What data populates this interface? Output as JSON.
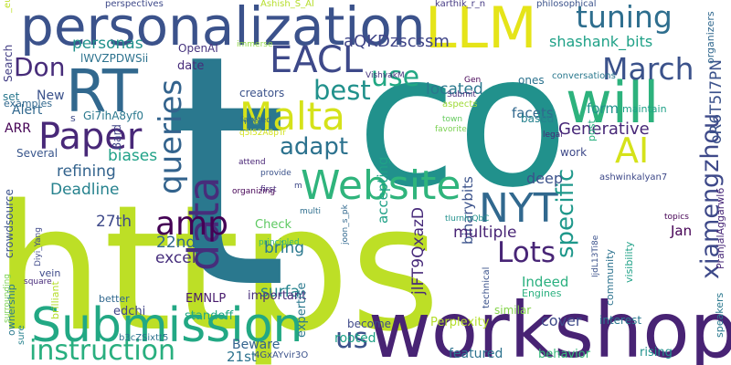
{
  "words": [
    {
      "text": "https",
      "color": "#bddf26"
    },
    {
      "text": "co",
      "color": "#21918c"
    },
    {
      "text": "t",
      "color": "#2a788e"
    },
    {
      "text": "workshop",
      "color": "#482374"
    },
    {
      "text": "personalization",
      "color": "#3b528b"
    },
    {
      "text": "Submission",
      "color": "#22a884"
    },
    {
      "text": "LLM",
      "color": "#e5e419"
    },
    {
      "text": "RT",
      "color": "#31688e"
    },
    {
      "text": "will",
      "color": "#2db27d"
    },
    {
      "text": "Website",
      "color": "#2fb47c"
    },
    {
      "text": "Malta",
      "color": "#d5e21a"
    },
    {
      "text": "EACL",
      "color": "#3e4989"
    },
    {
      "text": "data",
      "color": "#472d7b"
    },
    {
      "text": "Paper",
      "color": "#482878"
    },
    {
      "text": "queries",
      "color": "#33638d"
    },
    {
      "text": "instruction",
      "color": "#29af7f"
    },
    {
      "text": "NYT",
      "color": "#31688e"
    },
    {
      "text": "March",
      "color": "#3b528b"
    },
    {
      "text": "xiamengzhou",
      "color": "#3e4989"
    },
    {
      "text": "amp",
      "color": "#440154"
    },
    {
      "text": "Lots",
      "color": "#482576"
    },
    {
      "text": "us",
      "color": "#3b528b"
    },
    {
      "text": "specific",
      "color": "#1f988b"
    },
    {
      "text": "tuning",
      "color": "#2e6e8e"
    },
    {
      "text": "best",
      "color": "#21918c"
    },
    {
      "text": "AI",
      "color": "#d5e21a"
    },
    {
      "text": "use",
      "color": "#22a884"
    },
    {
      "text": "adapt",
      "color": "#2c728e"
    },
    {
      "text": "Don",
      "color": "#472c7a"
    },
    {
      "text": "aQKDzscssm",
      "color": "#404688"
    },
    {
      "text": "oR6T5I7PN",
      "color": "#3b528b"
    },
    {
      "text": "Generative",
      "color": "#482878"
    },
    {
      "text": "shashank_bits",
      "color": "#1fa187"
    },
    {
      "text": "personas",
      "color": "#21918c"
    },
    {
      "text": "located",
      "color": "#2a788e"
    },
    {
      "text": "refining",
      "color": "#33638d"
    },
    {
      "text": "biases",
      "color": "#1fa187"
    },
    {
      "text": "Deadline",
      "color": "#26828e"
    },
    {
      "text": "27th",
      "color": "#3e4989"
    },
    {
      "text": "22nd",
      "color": "#31688e"
    },
    {
      "text": "excel",
      "color": "#472f7d"
    },
    {
      "text": "bring",
      "color": "#2a788e"
    },
    {
      "text": "surfa",
      "color": "#25848e"
    },
    {
      "text": "jlFT9QxazD",
      "color": "#472a7a"
    },
    {
      "text": "binarybits",
      "color": "#3b528b"
    },
    {
      "text": "multiple",
      "color": "#482475"
    },
    {
      "text": "accepting",
      "color": "#1fa187"
    },
    {
      "text": "facets",
      "color": "#31688e"
    },
    {
      "text": "deep",
      "color": "#3b528b"
    },
    {
      "text": "form",
      "color": "#21918c"
    },
    {
      "text": "maintain",
      "color": "#1fa187"
    },
    {
      "text": "Indeed",
      "color": "#2ab07f"
    },
    {
      "text": "cover",
      "color": "#3e4989"
    },
    {
      "text": "featured",
      "color": "#2c728e"
    },
    {
      "text": "rooted",
      "color": "#1fa187"
    },
    {
      "text": "21st",
      "color": "#2c728e"
    },
    {
      "text": "Beware",
      "color": "#33638d"
    },
    {
      "text": "behavior",
      "color": "#35b779"
    },
    {
      "text": "rising",
      "color": "#21918c"
    },
    {
      "text": "Jan",
      "color": "#440154"
    },
    {
      "text": "Perplexity",
      "color": "#b5de2b"
    },
    {
      "text": "important",
      "color": "#472d7b"
    },
    {
      "text": "EMNLP",
      "color": "#481b6d"
    },
    {
      "text": "standoff",
      "color": "#22a884"
    },
    {
      "text": "edchi",
      "color": "#404688"
    },
    {
      "text": "Check",
      "color": "#5ec962"
    },
    {
      "text": "expertise",
      "color": "#2a788e"
    },
    {
      "text": "similar",
      "color": "#84d44b"
    },
    {
      "text": "become",
      "color": "#3e4989"
    },
    {
      "text": "date",
      "color": "#472c7a"
    },
    {
      "text": "New",
      "color": "#3b528b"
    },
    {
      "text": "Alert",
      "color": "#31688e"
    },
    {
      "text": "ARR",
      "color": "#440154"
    },
    {
      "text": "Several",
      "color": "#39568c"
    },
    {
      "text": "crowdsource",
      "color": "#3b528b"
    },
    {
      "text": "Gi7ihA8yf0",
      "color": "#2a788e"
    },
    {
      "text": "s",
      "color": "#3e4989"
    },
    {
      "text": "Bard",
      "color": "#414487"
    },
    {
      "text": "creators",
      "color": "#3b528b"
    },
    {
      "text": "OpenAI",
      "color": "#46337e"
    },
    {
      "text": "lWVZPDWSii",
      "color": "#2c728e"
    },
    {
      "text": "examples",
      "color": "#31688e"
    },
    {
      "text": "Search",
      "color": "#433e85"
    },
    {
      "text": "set",
      "color": "#2a788e"
    },
    {
      "text": "perspectives",
      "color": "#3e4989"
    },
    {
      "text": "_eunjeong_hwang",
      "color": "#bddf26"
    },
    {
      "text": "Ashish_S_AI",
      "color": "#b5de2b"
    },
    {
      "text": "karthik_r_n",
      "color": "#443983"
    },
    {
      "text": "ones",
      "color": "#2c728e"
    },
    {
      "text": "philosophical",
      "color": "#3b528b"
    },
    {
      "text": "work",
      "color": "#3e4989"
    },
    {
      "text": "organizers",
      "color": "#31688e"
    },
    {
      "text": "conversations",
      "color": "#2a788e"
    },
    {
      "text": "immerse",
      "color": "#8fd744"
    },
    {
      "text": "VishvakM",
      "color": "#46337e"
    },
    {
      "text": "Submit",
      "color": "#472d7b"
    },
    {
      "text": "aspects",
      "color": "#a0da39"
    },
    {
      "text": "based",
      "color": "#26828e"
    },
    {
      "text": "post",
      "color": "#2ab07f"
    },
    {
      "text": "legal",
      "color": "#482878"
    },
    {
      "text": "Gen",
      "color": "#440154"
    },
    {
      "text": "town",
      "color": "#65cb5e"
    },
    {
      "text": "favorite",
      "color": "#7ad151"
    },
    {
      "text": "faceted",
      "color": "#31688e"
    },
    {
      "text": "help",
      "color": "#2a788e"
    },
    {
      "text": "q5l52A8pTr",
      "color": "#d2e21b"
    },
    {
      "text": "attend",
      "color": "#482475"
    },
    {
      "text": "provide",
      "color": "#3b528b"
    },
    {
      "text": "organizing",
      "color": "#440154"
    },
    {
      "text": "first",
      "color": "#472a7a"
    },
    {
      "text": "m",
      "color": "#3e4989"
    },
    {
      "text": "multi",
      "color": "#2e6e8e"
    },
    {
      "text": "joon_s_pk",
      "color": "#31688e"
    },
    {
      "text": "principled",
      "color": "#2fb47c"
    },
    {
      "text": "Diyi_Yang",
      "color": "#3e4989"
    },
    {
      "text": "surrounding",
      "color": "#7ad151"
    },
    {
      "text": "vein",
      "color": "#3e4989"
    },
    {
      "text": "square",
      "color": "#472a7a"
    },
    {
      "text": "ownership",
      "color": "#2a788e"
    },
    {
      "text": "brilliant",
      "color": "#b5de2b"
    },
    {
      "text": "better",
      "color": "#31688e"
    },
    {
      "text": "sure",
      "color": "#26828e"
    },
    {
      "text": "b3cZSixtt5",
      "color": "#2c728e"
    },
    {
      "text": "4GxAYvir3O",
      "color": "#3b528b"
    },
    {
      "text": "Engines",
      "color": "#2ab07f"
    },
    {
      "text": "interest",
      "color": "#2a788e"
    },
    {
      "text": "visibility",
      "color": "#1fa187"
    },
    {
      "text": "community",
      "color": "#2c728e"
    },
    {
      "text": "technical",
      "color": "#3b528b"
    },
    {
      "text": "tIurnluQbC",
      "color": "#21918c"
    },
    {
      "text": "IjdL13Ti8e",
      "color": "#3b528b"
    },
    {
      "text": "topics",
      "color": "#440154"
    },
    {
      "text": "ashwinkalyan7",
      "color": "#3e4989"
    },
    {
      "text": "PranjalAggarwl6",
      "color": "#482878"
    },
    {
      "text": "speakers",
      "color": "#2a788e"
    }
  ]
}
